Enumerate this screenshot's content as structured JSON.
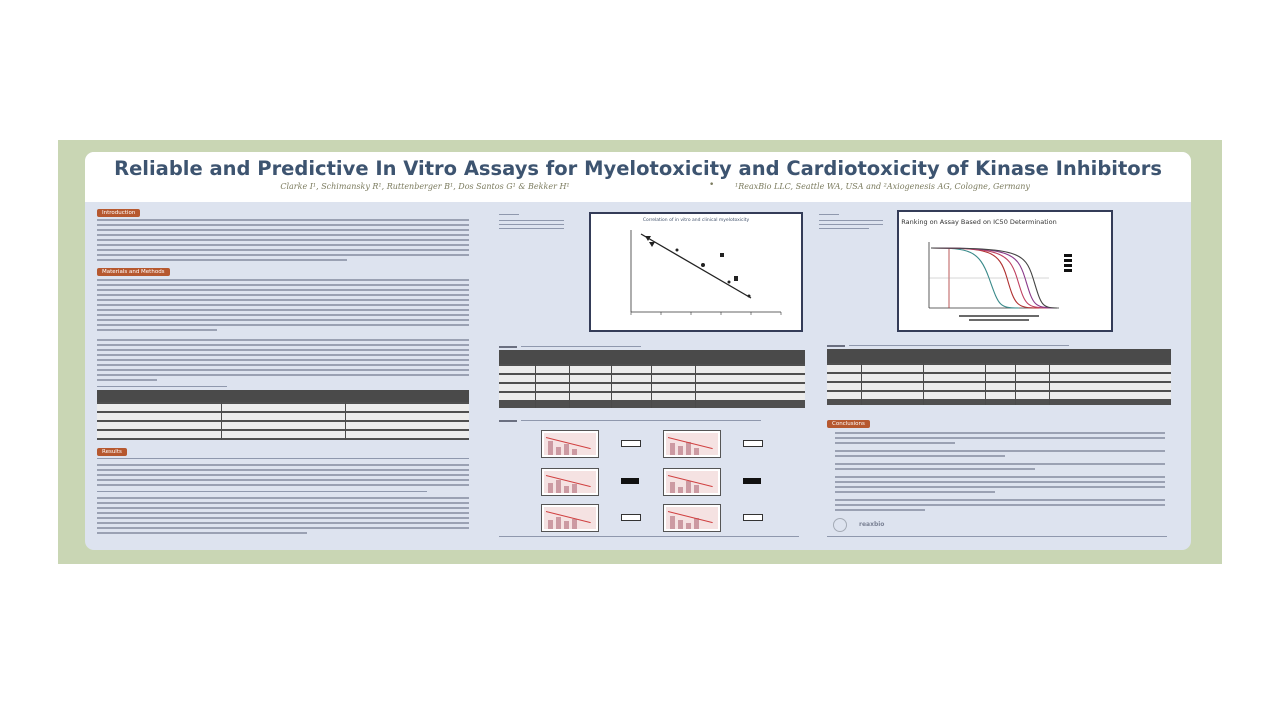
{
  "poster": {
    "title": "Reliable and Predictive In Vitro Assays for Myelotoxicity and Cardiotoxicity of Kinase Inhibitors",
    "authors": "Clarke I¹, Schimansky R¹, Ruttenberger B¹, Dos Santos G¹ & Bekker H¹",
    "bullet": "•",
    "affiliations": "¹ReaxBio LLC, Seattle WA, USA and ²Axiogenesis AG, Cologne, Germany",
    "sections": {
      "introduction": "Introduction",
      "materials": "Materials and Methods",
      "results": "Results",
      "conclusions": "Conclusions"
    },
    "charts": {
      "left_title": "Correlation of in vitro and clinical myelotoxicity",
      "right_title": "Ranking on Assay Based on IC50 Determination"
    },
    "logo_text": "reaxbio",
    "colors": {
      "frame": "#c9d6b4",
      "panel": "#dde3ef",
      "title": "#3d5470",
      "section_header": "#b6582f",
      "table_header": "#4a4a4a",
      "figure_border": "#343c58"
    }
  }
}
